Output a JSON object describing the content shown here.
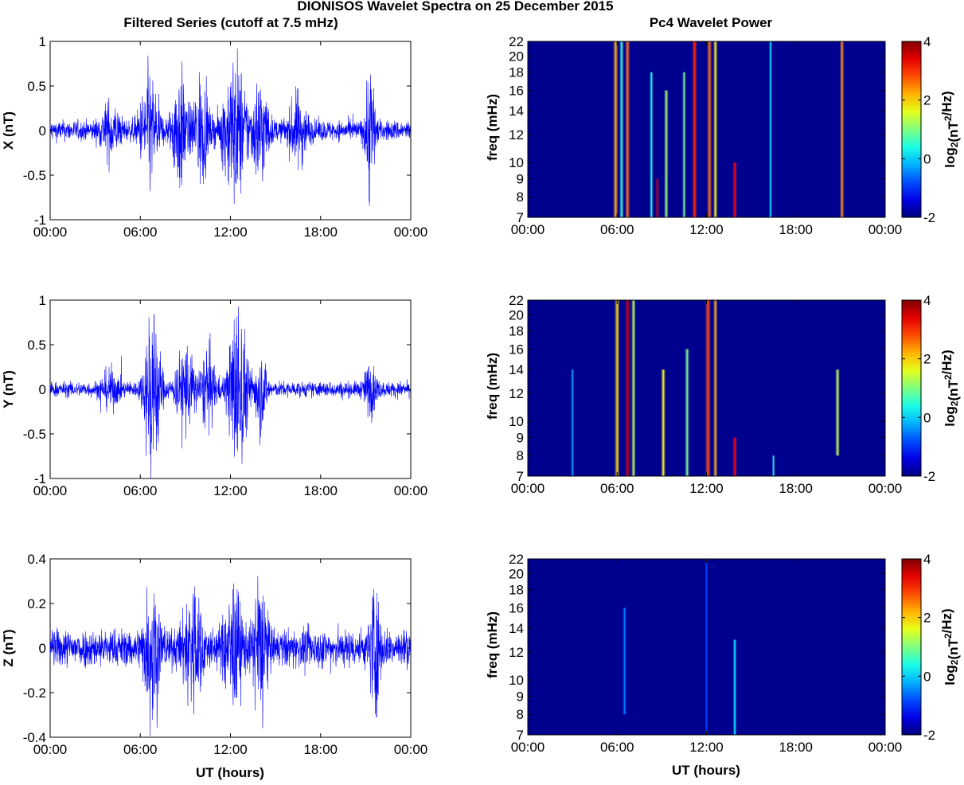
{
  "figure": {
    "title": "DIONISOS Wavelet Spectra on 25 December 2015",
    "left_title": "Filtered Series (cutoff at 7.5 mHz)",
    "right_title": "Pc4 Wavelet Power",
    "xlabel": "UT (hours)"
  },
  "chart_data": [
    {
      "type": "line",
      "component": "X",
      "ylabel": "X (nT)",
      "xlim": [
        0,
        24
      ],
      "ylim": [
        -1,
        1
      ],
      "x_ticks": [
        "00:00",
        "06:00",
        "12:00",
        "18:00",
        "00:00"
      ],
      "y_ticks": [
        "-1",
        "-0.5",
        "0",
        "0.5",
        "1"
      ],
      "baseline_amplitude": 0.08,
      "bursts": [
        {
          "t": 4.0,
          "w": 0.6,
          "amp": 0.18
        },
        {
          "t": 6.6,
          "w": 0.6,
          "amp": 0.42
        },
        {
          "t": 8.6,
          "w": 0.5,
          "amp": 0.45
        },
        {
          "t": 10.0,
          "w": 0.5,
          "amp": 0.4
        },
        {
          "t": 12.3,
          "w": 0.8,
          "amp": 0.55
        },
        {
          "t": 14.0,
          "w": 0.5,
          "amp": 0.4
        },
        {
          "t": 16.5,
          "w": 0.6,
          "amp": 0.25
        },
        {
          "t": 21.3,
          "w": 0.3,
          "amp": 0.55
        }
      ]
    },
    {
      "type": "line",
      "component": "Y",
      "ylabel": "Y (nT)",
      "xlim": [
        0,
        24
      ],
      "ylim": [
        -1,
        1
      ],
      "x_ticks": [
        "00:00",
        "06:00",
        "12:00",
        "18:00",
        "00:00"
      ],
      "y_ticks": [
        "-1",
        "-0.5",
        "0",
        "0.5",
        "1"
      ],
      "baseline_amplitude": 0.06,
      "bursts": [
        {
          "t": 4.0,
          "w": 0.6,
          "amp": 0.12
        },
        {
          "t": 6.8,
          "w": 0.5,
          "amp": 0.75
        },
        {
          "t": 9.0,
          "w": 0.6,
          "amp": 0.35
        },
        {
          "t": 10.5,
          "w": 0.5,
          "amp": 0.3
        },
        {
          "t": 12.5,
          "w": 0.6,
          "amp": 0.7
        },
        {
          "t": 14.0,
          "w": 0.4,
          "amp": 0.3
        },
        {
          "t": 21.3,
          "w": 0.4,
          "amp": 0.18
        }
      ]
    },
    {
      "type": "line",
      "component": "Z",
      "ylabel": "Z (nT)",
      "xlim": [
        0,
        24
      ],
      "ylim": [
        -0.4,
        0.4
      ],
      "x_ticks": [
        "00:00",
        "06:00",
        "12:00",
        "18:00",
        "00:00"
      ],
      "y_ticks": [
        "-0.4",
        "-0.2",
        "0",
        "0.2",
        "0.4"
      ],
      "xlabel": "UT (hours)",
      "baseline_amplitude": 0.06,
      "bursts": [
        {
          "t": 6.8,
          "w": 0.5,
          "amp": 0.22
        },
        {
          "t": 9.5,
          "w": 0.6,
          "amp": 0.18
        },
        {
          "t": 12.2,
          "w": 0.6,
          "amp": 0.16
        },
        {
          "t": 14.0,
          "w": 0.4,
          "amp": 0.25
        },
        {
          "t": 21.6,
          "w": 0.3,
          "amp": 0.2
        }
      ]
    },
    {
      "type": "heatmap",
      "component": "X",
      "ylabel": "freq (mHz)",
      "xlim": [
        0,
        24
      ],
      "ylim": [
        7,
        22
      ],
      "y_scale": "log",
      "x_ticks": [
        "00:00",
        "06:00",
        "12:00",
        "18:00",
        "00:00"
      ],
      "y_ticks": [
        7,
        8,
        9,
        10,
        12,
        14,
        16,
        18,
        20,
        22
      ],
      "colorbar": {
        "label": "log2(nT2/Hz)",
        "ticks": [
          "-2",
          "0",
          "2",
          "4"
        ],
        "range": [
          -2,
          4
        ],
        "colormap": "jet"
      },
      "background_value": -1.8,
      "events": [
        {
          "t": 5.9,
          "w": 0.07,
          "v": 2.2,
          "f_lo": 7,
          "f_hi": 22
        },
        {
          "t": 6.3,
          "w": 0.06,
          "v": 0.6,
          "f_lo": 7,
          "f_hi": 22
        },
        {
          "t": 6.7,
          "w": 0.07,
          "v": 2.6,
          "f_lo": 7,
          "f_hi": 22
        },
        {
          "t": 8.3,
          "w": 0.05,
          "v": 0.5,
          "f_lo": 7,
          "f_hi": 18
        },
        {
          "t": 8.7,
          "w": 0.05,
          "v": 3.6,
          "f_lo": 7,
          "f_hi": 9
        },
        {
          "t": 9.3,
          "w": 0.06,
          "v": 1.2,
          "f_lo": 7,
          "f_hi": 16
        },
        {
          "t": 10.5,
          "w": 0.05,
          "v": 1.0,
          "f_lo": 7,
          "f_hi": 18
        },
        {
          "t": 11.2,
          "w": 0.07,
          "v": 3.0,
          "f_lo": 7,
          "f_hi": 22
        },
        {
          "t": 12.2,
          "w": 0.07,
          "v": 2.6,
          "f_lo": 7,
          "f_hi": 22
        },
        {
          "t": 12.6,
          "w": 0.06,
          "v": 1.8,
          "f_lo": 7,
          "f_hi": 22
        },
        {
          "t": 13.9,
          "w": 0.06,
          "v": 3.2,
          "f_lo": 7,
          "f_hi": 10
        },
        {
          "t": 16.3,
          "w": 0.04,
          "v": 0.2,
          "f_lo": 7,
          "f_hi": 22
        },
        {
          "t": 21.1,
          "w": 0.06,
          "v": 2.4,
          "f_lo": 7,
          "f_hi": 22
        }
      ]
    },
    {
      "type": "heatmap",
      "component": "Y",
      "ylabel": "freq (mHz)",
      "xlim": [
        0,
        24
      ],
      "ylim": [
        7,
        22
      ],
      "y_scale": "log",
      "x_ticks": [
        "00:00",
        "06:00",
        "12:00",
        "18:00",
        "00:00"
      ],
      "y_ticks": [
        7,
        8,
        9,
        10,
        12,
        14,
        16,
        18,
        20,
        22
      ],
      "colorbar": {
        "label": "log2(nT2/Hz)",
        "ticks": [
          "-2",
          "0",
          "2",
          "4"
        ],
        "range": [
          -2,
          4
        ],
        "colormap": "jet"
      },
      "background_value": -1.8,
      "events": [
        {
          "t": 3.0,
          "w": 0.04,
          "v": -0.2,
          "f_lo": 7,
          "f_hi": 14
        },
        {
          "t": 6.0,
          "w": 0.07,
          "v": 2.0,
          "f_lo": 7,
          "f_hi": 22
        },
        {
          "t": 6.7,
          "w": 0.08,
          "v": 3.6,
          "f_lo": 7,
          "f_hi": 22
        },
        {
          "t": 7.1,
          "w": 0.06,
          "v": 1.4,
          "f_lo": 7,
          "f_hi": 22
        },
        {
          "t": 9.1,
          "w": 0.06,
          "v": 1.8,
          "f_lo": 7,
          "f_hi": 14
        },
        {
          "t": 10.7,
          "w": 0.06,
          "v": 1.0,
          "f_lo": 7,
          "f_hi": 16
        },
        {
          "t": 12.1,
          "w": 0.08,
          "v": 2.8,
          "f_lo": 7,
          "f_hi": 22
        },
        {
          "t": 12.6,
          "w": 0.06,
          "v": 2.2,
          "f_lo": 7,
          "f_hi": 22
        },
        {
          "t": 13.9,
          "w": 0.06,
          "v": 3.2,
          "f_lo": 7,
          "f_hi": 9
        },
        {
          "t": 16.5,
          "w": 0.04,
          "v": 0.5,
          "f_lo": 7,
          "f_hi": 8
        },
        {
          "t": 20.8,
          "w": 0.06,
          "v": 1.4,
          "f_lo": 8,
          "f_hi": 14
        }
      ]
    },
    {
      "type": "heatmap",
      "component": "Z",
      "ylabel": "freq (mHz)",
      "xlabel": "UT (hours)",
      "xlim": [
        0,
        24
      ],
      "ylim": [
        7,
        22
      ],
      "y_scale": "log",
      "x_ticks": [
        "00:00",
        "06:00",
        "12:00",
        "18:00",
        "00:00"
      ],
      "y_ticks": [
        7,
        8,
        9,
        10,
        12,
        14,
        16,
        18,
        20,
        22
      ],
      "colorbar": {
        "label": "log2(nT2/Hz)",
        "ticks": [
          "-2",
          "0",
          "2",
          "4"
        ],
        "range": [
          -2,
          4
        ],
        "colormap": "jet"
      },
      "background_value": -1.85,
      "events": [
        {
          "t": 6.5,
          "w": 0.05,
          "v": -0.5,
          "f_lo": 8,
          "f_hi": 16
        },
        {
          "t": 12.0,
          "w": 0.04,
          "v": -0.8,
          "f_lo": 7,
          "f_hi": 22
        },
        {
          "t": 13.9,
          "w": 0.05,
          "v": 0.2,
          "f_lo": 7,
          "f_hi": 13
        }
      ]
    }
  ]
}
